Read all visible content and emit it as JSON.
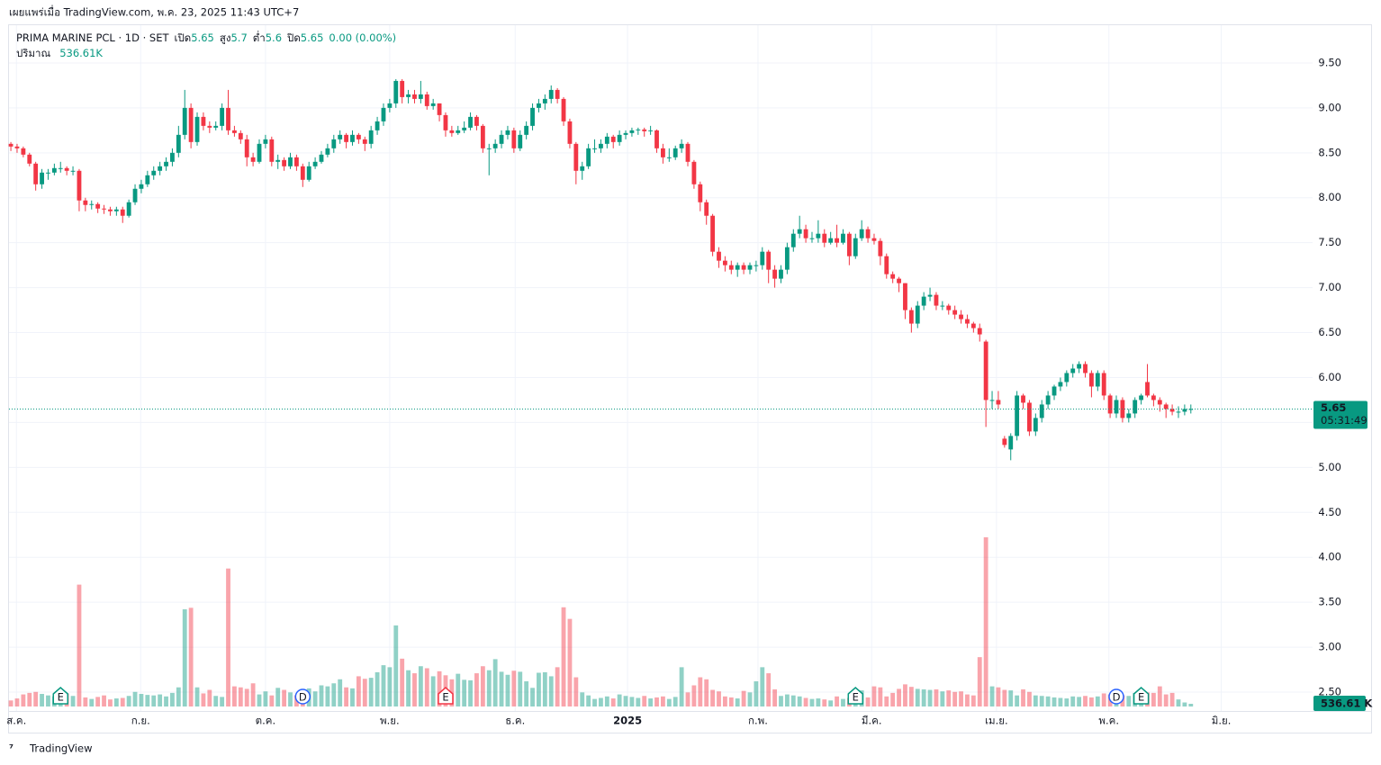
{
  "header": {
    "published": "เผยแพร่เมื่อ TradingView.com, พ.ค. 23, 2025 11:43 UTC+7",
    "footer": "TradingView"
  },
  "chart_data": {
    "type": "candlestick",
    "title": "PRIMA MARINE PCL · 1D · SET",
    "open_label": "เปิด",
    "high_label": "สูง",
    "low_label": "ต่ำ",
    "close_label": "ปิด",
    "change": "0.00 (0.00%)",
    "volume_title": "ปริมาณ",
    "volume_text": "536.61K",
    "volume_axis_label": "536.61 K",
    "countdown": "05:31:49",
    "up_color": "#089981",
    "down_color": "#f23645",
    "grid": true,
    "ylim": [
      2.29,
      9.92
    ],
    "yticks": [
      {
        "value": 2.5,
        "label": "2.50"
      },
      {
        "value": 3,
        "label": "3.00"
      },
      {
        "value": 3.5,
        "label": "3.50"
      },
      {
        "value": 4,
        "label": "4.00"
      },
      {
        "value": 4.5,
        "label": "4.50"
      },
      {
        "value": 5,
        "label": "5.00"
      },
      {
        "value": 5.5,
        "label": "5.50"
      },
      {
        "value": 6,
        "label": "6.00"
      },
      {
        "value": 6.5,
        "label": "6.50"
      },
      {
        "value": 7,
        "label": "7.00"
      },
      {
        "value": 7.5,
        "label": "7.50"
      },
      {
        "value": 8,
        "label": "8.00"
      },
      {
        "value": 8.5,
        "label": "8.50"
      },
      {
        "value": 9,
        "label": "9.00"
      },
      {
        "value": 9.5,
        "label": "9.50"
      }
    ],
    "xlim": [
      -0.3,
      209.6
    ],
    "xticks": [
      {
        "value": 0.9,
        "label": "ส.ค."
      },
      {
        "value": 20.9,
        "label": "ก.ย."
      },
      {
        "value": 41,
        "label": "ต.ค."
      },
      {
        "value": 61,
        "label": "พ.ย."
      },
      {
        "value": 81.2,
        "label": "ธ.ค."
      },
      {
        "value": 99.3,
        "label": "2025"
      },
      {
        "value": 120.3,
        "label": "ก.พ."
      },
      {
        "value": 138.6,
        "label": "มี.ค."
      },
      {
        "value": 158.7,
        "label": "เม.ย."
      },
      {
        "value": 176.8,
        "label": "พ.ค."
      },
      {
        "value": 194.9,
        "label": "มิ.ย."
      }
    ],
    "events": [
      {
        "label": "E",
        "x": 8,
        "color": "#089981"
      },
      {
        "label": "D",
        "x": 47,
        "color": "#2962ff"
      },
      {
        "label": "E",
        "x": 70,
        "color": "#f23645"
      },
      {
        "label": "E",
        "x": 136,
        "color": "#089981"
      },
      {
        "label": "D",
        "x": 178,
        "color": "#2962ff"
      },
      {
        "label": "E",
        "x": 182,
        "color": "#089981"
      }
    ],
    "candles": [
      [
        8.6,
        8.62,
        8.52,
        8.57
      ],
      [
        8.57,
        8.6,
        8.5,
        8.55
      ],
      [
        8.55,
        8.57,
        8.45,
        8.48
      ],
      [
        8.48,
        8.5,
        8.35,
        8.38
      ],
      [
        8.38,
        8.4,
        8.08,
        8.15
      ],
      [
        8.15,
        8.32,
        8.1,
        8.28
      ],
      [
        8.28,
        8.32,
        8.2,
        8.28
      ],
      [
        8.28,
        8.38,
        8.25,
        8.33
      ],
      [
        8.33,
        8.4,
        8.28,
        8.33
      ],
      [
        8.33,
        8.35,
        8.25,
        8.3
      ],
      [
        8.3,
        8.35,
        8.25,
        8.3
      ],
      [
        8.3,
        8.32,
        7.85,
        7.97
      ],
      [
        7.97,
        8.0,
        7.85,
        7.92
      ],
      [
        7.92,
        7.97,
        7.87,
        7.93
      ],
      [
        7.93,
        7.95,
        7.83,
        7.88
      ],
      [
        7.88,
        7.92,
        7.82,
        7.87
      ],
      [
        7.87,
        7.9,
        7.8,
        7.85
      ],
      [
        7.85,
        7.9,
        7.8,
        7.87
      ],
      [
        7.87,
        7.9,
        7.72,
        7.8
      ],
      [
        7.8,
        7.98,
        7.78,
        7.95
      ],
      [
        7.95,
        8.15,
        7.92,
        8.1
      ],
      [
        8.1,
        8.2,
        8.05,
        8.15
      ],
      [
        8.15,
        8.3,
        8.12,
        8.25
      ],
      [
        8.25,
        8.35,
        8.2,
        8.3
      ],
      [
        8.3,
        8.4,
        8.25,
        8.35
      ],
      [
        8.35,
        8.45,
        8.3,
        8.4
      ],
      [
        8.4,
        8.55,
        8.35,
        8.5
      ],
      [
        8.5,
        8.8,
        8.45,
        8.7
      ],
      [
        8.7,
        9.2,
        8.65,
        9.0
      ],
      [
        9.0,
        9.05,
        8.55,
        8.62
      ],
      [
        8.62,
        8.95,
        8.58,
        8.9
      ],
      [
        8.9,
        8.95,
        8.75,
        8.8
      ],
      [
        8.8,
        8.85,
        8.72,
        8.78
      ],
      [
        8.78,
        8.85,
        8.75,
        8.8
      ],
      [
        8.8,
        9.05,
        8.75,
        9.0
      ],
      [
        9.0,
        9.2,
        8.7,
        8.75
      ],
      [
        8.75,
        8.8,
        8.68,
        8.72
      ],
      [
        8.72,
        8.75,
        8.6,
        8.65
      ],
      [
        8.65,
        8.7,
        8.35,
        8.45
      ],
      [
        8.45,
        8.5,
        8.35,
        8.4
      ],
      [
        8.4,
        8.65,
        8.38,
        8.6
      ],
      [
        8.6,
        8.7,
        8.55,
        8.65
      ],
      [
        8.65,
        8.68,
        8.35,
        8.4
      ],
      [
        8.4,
        8.48,
        8.32,
        8.42
      ],
      [
        8.42,
        8.45,
        8.3,
        8.35
      ],
      [
        8.35,
        8.5,
        8.32,
        8.45
      ],
      [
        8.45,
        8.48,
        8.3,
        8.35
      ],
      [
        8.35,
        8.38,
        8.12,
        8.2
      ],
      [
        8.2,
        8.4,
        8.18,
        8.35
      ],
      [
        8.35,
        8.45,
        8.32,
        8.4
      ],
      [
        8.4,
        8.52,
        8.38,
        8.48
      ],
      [
        8.48,
        8.6,
        8.45,
        8.55
      ],
      [
        8.55,
        8.7,
        8.5,
        8.65
      ],
      [
        8.65,
        8.75,
        8.6,
        8.7
      ],
      [
        8.7,
        8.72,
        8.55,
        8.62
      ],
      [
        8.62,
        8.75,
        8.58,
        8.7
      ],
      [
        8.7,
        8.72,
        8.6,
        8.65
      ],
      [
        8.65,
        8.68,
        8.52,
        8.6
      ],
      [
        8.6,
        8.8,
        8.55,
        8.75
      ],
      [
        8.75,
        8.9,
        8.7,
        8.85
      ],
      [
        8.85,
        9.05,
        8.8,
        9.0
      ],
      [
        9.0,
        9.1,
        8.95,
        9.05
      ],
      [
        9.05,
        9.32,
        9.0,
        9.3
      ],
      [
        9.3,
        9.32,
        9.05,
        9.12
      ],
      [
        9.12,
        9.2,
        9.05,
        9.15
      ],
      [
        9.15,
        9.2,
        9.05,
        9.1
      ],
      [
        9.1,
        9.3,
        9.05,
        9.15
      ],
      [
        9.15,
        9.18,
        8.98,
        9.02
      ],
      [
        9.02,
        9.1,
        8.98,
        9.05
      ],
      [
        9.05,
        9.05,
        8.85,
        8.92
      ],
      [
        8.92,
        8.95,
        8.68,
        8.75
      ],
      [
        8.75,
        8.8,
        8.68,
        8.72
      ],
      [
        8.72,
        8.8,
        8.7,
        8.75
      ],
      [
        8.75,
        8.85,
        8.72,
        8.78
      ],
      [
        8.78,
        8.95,
        8.75,
        8.9
      ],
      [
        8.9,
        8.92,
        8.75,
        8.8
      ],
      [
        8.8,
        8.82,
        8.5,
        8.55
      ],
      [
        8.55,
        8.6,
        8.25,
        8.55
      ],
      [
        8.55,
        8.65,
        8.5,
        8.6
      ],
      [
        8.6,
        8.75,
        8.55,
        8.7
      ],
      [
        8.7,
        8.8,
        8.65,
        8.75
      ],
      [
        8.75,
        8.78,
        8.5,
        8.55
      ],
      [
        8.55,
        8.75,
        8.52,
        8.7
      ],
      [
        8.7,
        8.85,
        8.65,
        8.8
      ],
      [
        8.8,
        9.05,
        8.75,
        9.0
      ],
      [
        9.0,
        9.1,
        8.95,
        9.05
      ],
      [
        9.05,
        9.15,
        8.98,
        9.1
      ],
      [
        9.1,
        9.25,
        9.05,
        9.2
      ],
      [
        9.2,
        9.22,
        9.05,
        9.1
      ],
      [
        9.1,
        9.12,
        8.8,
        8.85
      ],
      [
        8.85,
        8.88,
        8.55,
        8.6
      ],
      [
        8.6,
        8.62,
        8.15,
        8.3
      ],
      [
        8.3,
        8.4,
        8.2,
        8.35
      ],
      [
        8.35,
        8.6,
        8.32,
        8.55
      ],
      [
        8.55,
        8.65,
        8.5,
        8.55
      ],
      [
        8.55,
        8.65,
        8.5,
        8.6
      ],
      [
        8.6,
        8.72,
        8.55,
        8.68
      ],
      [
        8.68,
        8.7,
        8.55,
        8.62
      ],
      [
        8.62,
        8.75,
        8.58,
        8.7
      ],
      [
        8.7,
        8.75,
        8.65,
        8.72
      ],
      [
        8.72,
        8.78,
        8.68,
        8.75
      ],
      [
        8.75,
        8.78,
        8.7,
        8.76
      ],
      [
        8.76,
        8.78,
        8.68,
        8.74
      ],
      [
        8.74,
        8.8,
        8.7,
        8.75
      ],
      [
        8.75,
        8.76,
        8.5,
        8.55
      ],
      [
        8.55,
        8.6,
        8.38,
        8.45
      ],
      [
        8.45,
        8.55,
        8.4,
        8.45
      ],
      [
        8.45,
        8.58,
        8.42,
        8.55
      ],
      [
        8.55,
        8.65,
        8.5,
        8.6
      ],
      [
        8.6,
        8.62,
        8.35,
        8.4
      ],
      [
        8.4,
        8.42,
        8.1,
        8.15
      ],
      [
        8.15,
        8.18,
        7.85,
        7.95
      ],
      [
        7.95,
        7.98,
        7.7,
        7.8
      ],
      [
        7.8,
        7.82,
        7.35,
        7.4
      ],
      [
        7.4,
        7.45,
        7.22,
        7.3
      ],
      [
        7.3,
        7.35,
        7.18,
        7.25
      ],
      [
        7.25,
        7.3,
        7.15,
        7.2
      ],
      [
        7.2,
        7.28,
        7.12,
        7.25
      ],
      [
        7.25,
        7.28,
        7.15,
        7.2
      ],
      [
        7.2,
        7.28,
        7.15,
        7.25
      ],
      [
        7.25,
        7.3,
        7.18,
        7.25
      ],
      [
        7.25,
        7.45,
        7.2,
        7.4
      ],
      [
        7.4,
        7.42,
        7.05,
        7.2
      ],
      [
        7.2,
        7.25,
        7.0,
        7.1
      ],
      [
        7.1,
        7.25,
        7.05,
        7.2
      ],
      [
        7.2,
        7.5,
        7.15,
        7.45
      ],
      [
        7.45,
        7.65,
        7.4,
        7.6
      ],
      [
        7.6,
        7.8,
        7.55,
        7.65
      ],
      [
        7.65,
        7.7,
        7.5,
        7.55
      ],
      [
        7.55,
        7.62,
        7.5,
        7.55
      ],
      [
        7.55,
        7.75,
        7.5,
        7.6
      ],
      [
        7.6,
        7.65,
        7.45,
        7.5
      ],
      [
        7.5,
        7.62,
        7.48,
        7.55
      ],
      [
        7.55,
        7.7,
        7.45,
        7.5
      ],
      [
        7.5,
        7.65,
        7.48,
        7.6
      ],
      [
        7.6,
        7.62,
        7.25,
        7.35
      ],
      [
        7.35,
        7.6,
        7.32,
        7.55
      ],
      [
        7.55,
        7.75,
        7.52,
        7.65
      ],
      [
        7.65,
        7.68,
        7.5,
        7.55
      ],
      [
        7.55,
        7.6,
        7.48,
        7.52
      ],
      [
        7.52,
        7.55,
        7.25,
        7.35
      ],
      [
        7.35,
        7.38,
        7.1,
        7.15
      ],
      [
        7.15,
        7.18,
        7.05,
        7.1
      ],
      [
        7.1,
        7.12,
        6.95,
        7.05
      ],
      [
        7.05,
        7.05,
        6.65,
        6.75
      ],
      [
        6.75,
        6.78,
        6.5,
        6.6
      ],
      [
        6.6,
        6.85,
        6.55,
        6.8
      ],
      [
        6.8,
        6.95,
        6.75,
        6.9
      ],
      [
        6.9,
        7.0,
        6.85,
        6.92
      ],
      [
        6.92,
        6.95,
        6.75,
        6.8
      ],
      [
        6.8,
        6.85,
        6.75,
        6.8
      ],
      [
        6.8,
        6.82,
        6.7,
        6.75
      ],
      [
        6.75,
        6.8,
        6.65,
        6.7
      ],
      [
        6.7,
        6.75,
        6.6,
        6.65
      ],
      [
        6.65,
        6.7,
        6.55,
        6.6
      ],
      [
        6.6,
        6.62,
        6.5,
        6.55
      ],
      [
        6.55,
        6.6,
        6.4,
        6.48
      ],
      [
        6.4,
        6.42,
        5.45,
        5.75
      ],
      [
        5.75,
        5.85,
        5.65,
        5.75
      ],
      [
        5.75,
        5.85,
        5.65,
        5.7
      ],
      [
        5.32,
        5.35,
        5.22,
        5.25
      ],
      [
        5.2,
        5.38,
        5.08,
        5.35
      ],
      [
        5.35,
        5.85,
        5.3,
        5.8
      ],
      [
        5.8,
        5.82,
        5.65,
        5.72
      ],
      [
        5.72,
        5.75,
        5.35,
        5.4
      ],
      [
        5.4,
        5.6,
        5.35,
        5.55
      ],
      [
        5.55,
        5.75,
        5.5,
        5.7
      ],
      [
        5.7,
        5.85,
        5.65,
        5.8
      ],
      [
        5.8,
        5.92,
        5.75,
        5.9
      ],
      [
        5.9,
        6.0,
        5.85,
        5.95
      ],
      [
        5.95,
        6.08,
        5.9,
        6.05
      ],
      [
        6.05,
        6.15,
        6.0,
        6.1
      ],
      [
        6.1,
        6.18,
        6.05,
        6.15
      ],
      [
        6.15,
        6.18,
        6.0,
        6.05
      ],
      [
        6.05,
        6.08,
        5.78,
        5.9
      ],
      [
        5.9,
        6.08,
        5.85,
        6.05
      ],
      [
        6.05,
        6.08,
        5.75,
        5.8
      ],
      [
        5.8,
        5.82,
        5.55,
        5.6
      ],
      [
        5.6,
        5.8,
        5.55,
        5.75
      ],
      [
        5.75,
        5.78,
        5.5,
        5.55
      ],
      [
        5.55,
        5.65,
        5.5,
        5.6
      ],
      [
        5.6,
        5.78,
        5.55,
        5.75
      ],
      [
        5.75,
        5.82,
        5.7,
        5.8
      ],
      [
        5.95,
        6.15,
        5.78,
        5.8
      ],
      [
        5.8,
        5.82,
        5.68,
        5.75
      ],
      [
        5.75,
        5.78,
        5.62,
        5.7
      ],
      [
        5.7,
        5.72,
        5.55,
        5.65
      ],
      [
        5.65,
        5.7,
        5.58,
        5.62
      ],
      [
        5.62,
        5.68,
        5.55,
        5.62
      ],
      [
        5.62,
        5.7,
        5.58,
        5.65
      ],
      [
        5.65,
        5.7,
        5.6,
        5.65
      ]
    ],
    "volume": [
      1200,
      1600,
      2400,
      2700,
      2900,
      2500,
      2200,
      2000,
      2300,
      2600,
      2100,
      24200,
      1800,
      1500,
      1900,
      2200,
      1400,
      1600,
      1700,
      2100,
      2900,
      2500,
      2300,
      2200,
      2400,
      2000,
      2700,
      3800,
      19300,
      19600,
      3800,
      2600,
      3300,
      2100,
      1900,
      27400,
      4000,
      3800,
      3500,
      4600,
      2400,
      3000,
      2200,
      3700,
      3300,
      2800,
      2200,
      2000,
      3600,
      3000,
      4200,
      4000,
      4600,
      5400,
      3800,
      3600,
      6000,
      5500,
      5700,
      6800,
      8200,
      7800,
      16100,
      9500,
      7200,
      6600,
      8000,
      7600,
      6000,
      7000,
      6200,
      5400,
      6500,
      5300,
      5200,
      6600,
      8000,
      7200,
      9400,
      6900,
      6300,
      7100,
      6900,
      5000,
      3700,
      6700,
      6800,
      6000,
      7800,
      19700,
      17400,
      5800,
      2800,
      2200,
      1500,
      1700,
      2000,
      1600,
      2400,
      2100,
      1900,
      1700,
      2100,
      1600,
      1800,
      2000,
      1500,
      1900,
      7800,
      2800,
      4200,
      5800,
      5400,
      3300,
      3000,
      2000,
      1800,
      1600,
      3100,
      2800,
      5000,
      7800,
      6600,
      3400,
      2100,
      2400,
      2200,
      2000,
      1700,
      1500,
      1600,
      1400,
      1200,
      2000,
      1500,
      1700,
      2500,
      3200,
      1800,
      4000,
      3800,
      2000,
      2700,
      3500,
      4400,
      3900,
      3500,
      3400,
      3300,
      3400,
      3000,
      3200,
      2900,
      3000,
      2400,
      2200,
      9800,
      33600,
      4000,
      3800,
      3300,
      3200,
      2200,
      3400,
      2900,
      2200,
      2100,
      2000,
      1800,
      1700,
      1600,
      2000,
      1900,
      2100,
      1800,
      2000,
      2600,
      2400,
      2900,
      2200,
      2100,
      2700,
      2200,
      2800,
      2700,
      4000,
      2400,
      2700,
      1400,
      800,
      536.61
    ]
  }
}
